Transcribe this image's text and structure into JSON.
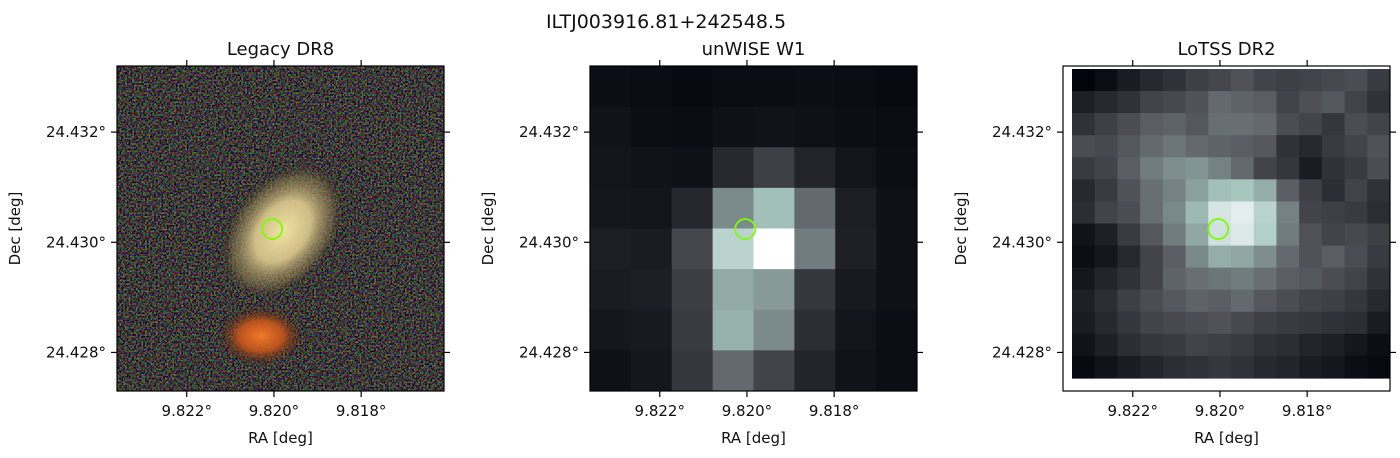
{
  "figure": {
    "title": "ILTJ003916.81+242548.5"
  },
  "chart_data": [
    {
      "type": "heatmap",
      "title": "Legacy DR8",
      "xlabel": "RA [deg]",
      "ylabel": "Dec [deg]",
      "x_ticks": [
        {
          "value": 9.822,
          "label": "9.822°"
        },
        {
          "value": 9.82,
          "label": "9.820°"
        },
        {
          "value": 9.818,
          "label": "9.818°"
        }
      ],
      "y_ticks": [
        {
          "value": 24.432,
          "label": "24.432°"
        },
        {
          "value": 24.43,
          "label": "24.430°"
        },
        {
          "value": 24.428,
          "label": "24.428°"
        }
      ],
      "xlim": [
        9.8236,
        9.8161
      ],
      "ylim": [
        24.4273,
        24.4332
      ],
      "image": "rgb optical cutout",
      "sources": [
        {
          "ra": 9.8198,
          "dec": 24.4302,
          "color": "#e8d89a",
          "kind": "elliptical galaxy"
        },
        {
          "ra": 9.8203,
          "dec": 24.4283,
          "color": "#d9641e",
          "kind": "compact red source"
        }
      ],
      "marker": {
        "ra": 9.82004,
        "dec": 24.43024,
        "color": "#7cfc00",
        "shape": "circle"
      }
    },
    {
      "type": "heatmap",
      "title": "unWISE W1",
      "xlabel": "RA [deg]",
      "ylabel": "Dec [deg]",
      "x_ticks": [
        {
          "value": 9.822,
          "label": "9.822°"
        },
        {
          "value": 9.82,
          "label": "9.820°"
        },
        {
          "value": 9.818,
          "label": "9.818°"
        }
      ],
      "y_ticks": [
        {
          "value": 24.432,
          "label": "24.432°"
        },
        {
          "value": 24.43,
          "label": "24.430°"
        },
        {
          "value": 24.428,
          "label": "24.428°"
        }
      ],
      "xlim": [
        9.8236,
        9.8161
      ],
      "ylim": [
        24.4273,
        24.4332
      ],
      "grid": {
        "cols": 8,
        "rows": 8,
        "values": [
          [
            0.06,
            0.05,
            0.04,
            0.05,
            0.05,
            0.06,
            0.05,
            0.04
          ],
          [
            0.08,
            0.06,
            0.05,
            0.07,
            0.08,
            0.07,
            0.06,
            0.05
          ],
          [
            0.09,
            0.08,
            0.07,
            0.18,
            0.28,
            0.16,
            0.09,
            0.06
          ],
          [
            0.1,
            0.09,
            0.17,
            0.55,
            0.72,
            0.44,
            0.13,
            0.07
          ],
          [
            0.13,
            0.12,
            0.31,
            0.8,
            1.0,
            0.5,
            0.14,
            0.07
          ],
          [
            0.12,
            0.13,
            0.27,
            0.65,
            0.6,
            0.24,
            0.11,
            0.07
          ],
          [
            0.1,
            0.11,
            0.26,
            0.67,
            0.55,
            0.2,
            0.09,
            0.06
          ],
          [
            0.07,
            0.1,
            0.24,
            0.44,
            0.3,
            0.16,
            0.08,
            0.06
          ]
        ]
      },
      "marker": {
        "ra": 9.82004,
        "dec": 24.43024,
        "color": "#7cfc00",
        "shape": "circle"
      }
    },
    {
      "type": "heatmap",
      "title": "LoTSS DR2",
      "xlabel": "RA [deg]",
      "ylabel": "Dec [deg]",
      "x_ticks": [
        {
          "value": 9.822,
          "label": "9.822°"
        },
        {
          "value": 9.82,
          "label": "9.820°"
        },
        {
          "value": 9.818,
          "label": "9.818°"
        }
      ],
      "y_ticks": [
        {
          "value": 24.432,
          "label": "24.432°"
        },
        {
          "value": 24.43,
          "label": "24.430°"
        },
        {
          "value": 24.428,
          "label": "24.428°"
        }
      ],
      "xlim": [
        9.8236,
        9.8161
      ],
      "ylim": [
        24.4273,
        24.4332
      ],
      "grid": {
        "cols": 14,
        "rows": 14,
        "values": [
          [
            0.02,
            0.06,
            0.12,
            0.18,
            0.22,
            0.28,
            0.31,
            0.36,
            0.3,
            0.28,
            0.3,
            0.32,
            0.34,
            0.26
          ],
          [
            0.14,
            0.18,
            0.22,
            0.3,
            0.32,
            0.36,
            0.44,
            0.42,
            0.4,
            0.3,
            0.35,
            0.38,
            0.3,
            0.22
          ],
          [
            0.22,
            0.28,
            0.34,
            0.4,
            0.42,
            0.38,
            0.46,
            0.46,
            0.44,
            0.34,
            0.3,
            0.24,
            0.34,
            0.3
          ],
          [
            0.34,
            0.32,
            0.38,
            0.44,
            0.48,
            0.44,
            0.42,
            0.4,
            0.38,
            0.22,
            0.18,
            0.26,
            0.3,
            0.36
          ],
          [
            0.26,
            0.3,
            0.4,
            0.5,
            0.56,
            0.58,
            0.52,
            0.44,
            0.3,
            0.24,
            0.12,
            0.22,
            0.26,
            0.34
          ],
          [
            0.18,
            0.26,
            0.36,
            0.46,
            0.52,
            0.62,
            0.72,
            0.74,
            0.66,
            0.4,
            0.28,
            0.2,
            0.3,
            0.22
          ],
          [
            0.2,
            0.3,
            0.34,
            0.46,
            0.54,
            0.7,
            0.88,
            0.92,
            0.8,
            0.52,
            0.3,
            0.28,
            0.26,
            0.2
          ],
          [
            0.08,
            0.14,
            0.26,
            0.38,
            0.5,
            0.64,
            0.86,
            0.9,
            0.78,
            0.5,
            0.36,
            0.3,
            0.32,
            0.28
          ],
          [
            0.06,
            0.1,
            0.18,
            0.3,
            0.4,
            0.54,
            0.66,
            0.64,
            0.56,
            0.44,
            0.36,
            0.4,
            0.34,
            0.26
          ],
          [
            0.1,
            0.16,
            0.22,
            0.3,
            0.42,
            0.46,
            0.48,
            0.5,
            0.46,
            0.4,
            0.38,
            0.34,
            0.3,
            0.22
          ],
          [
            0.14,
            0.2,
            0.28,
            0.34,
            0.38,
            0.42,
            0.4,
            0.44,
            0.38,
            0.34,
            0.3,
            0.28,
            0.24,
            0.18
          ],
          [
            0.12,
            0.18,
            0.24,
            0.3,
            0.32,
            0.34,
            0.36,
            0.32,
            0.28,
            0.26,
            0.24,
            0.22,
            0.2,
            0.12
          ],
          [
            0.08,
            0.14,
            0.2,
            0.24,
            0.26,
            0.3,
            0.28,
            0.26,
            0.22,
            0.2,
            0.16,
            0.14,
            0.1,
            0.06
          ],
          [
            0.04,
            0.08,
            0.12,
            0.16,
            0.2,
            0.22,
            0.24,
            0.22,
            0.18,
            0.16,
            0.12,
            0.1,
            0.06,
            0.04
          ]
        ]
      },
      "marker": {
        "ra": 9.82004,
        "dec": 24.43024,
        "color": "#7cfc00",
        "shape": "circle"
      }
    }
  ]
}
